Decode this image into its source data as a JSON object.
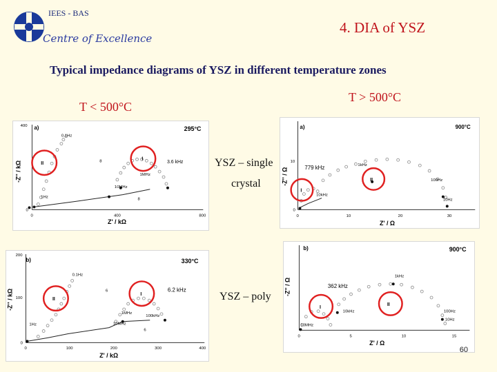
{
  "header": {
    "org": "IEES - BAS",
    "centre": "Centre of Excellence",
    "title": "4.  DIA of YSZ",
    "subtitle": "Typical impedance diagrams of YSZ in different  temperature zones"
  },
  "zones": {
    "low": "T < 500°C",
    "high": "T  > 500°C"
  },
  "labels": {
    "single_line1": "YSZ – single",
    "single_line2": "crystal",
    "poly": "YSZ – poly"
  },
  "page_number": "60",
  "colors": {
    "title_red": "#c0141c",
    "circle_red": "#e02020",
    "navy": "#1a1a60"
  },
  "chart_data": [
    {
      "type": "scatter",
      "panel": "a)",
      "temperature": "295°C",
      "xlabel": "Z' / kΩ",
      "ylabel": "-Z'' / kΩ",
      "xticks": [
        "0",
        "400",
        "800"
      ],
      "yticks": [
        "0",
        "400"
      ],
      "annotations": [
        "0.1Hz",
        "3.6 kHz",
        "1MHz",
        "10MHz",
        "8",
        "8",
        "1Hz",
        "II",
        "I"
      ]
    },
    {
      "type": "scatter",
      "panel": "b)",
      "temperature": "330°C",
      "xlabel": "Z' / kΩ",
      "ylabel": "-Z'' / kΩ",
      "xticks": [
        "0",
        "100",
        "200",
        "300",
        "400"
      ],
      "yticks": [
        "0",
        "100",
        "200"
      ],
      "annotations": [
        "0.1Hz",
        "6",
        "6.2 kHz",
        "1MHz",
        "10MHz",
        "100kHz",
        "1Hz",
        "6",
        "II",
        "I"
      ]
    },
    {
      "type": "scatter",
      "panel": "a)",
      "temperature": "900°C",
      "xlabel": "Z' / Ω",
      "ylabel": "-Z'' / Ω",
      "xticks": [
        "0",
        "10",
        "20",
        "30"
      ],
      "yticks": [
        "0",
        "10"
      ],
      "annotations": [
        "779 kHz",
        "1kHz",
        "100Hz",
        "10kHz",
        "10Hz",
        "II",
        "I"
      ]
    },
    {
      "type": "scatter",
      "panel": "b)",
      "temperature": "900°C",
      "xlabel": "Z' / Ω",
      "ylabel": "-Z'' / Ω",
      "xticks": [
        "0",
        "5",
        "10",
        "15"
      ],
      "annotations": [
        "362 kHz",
        "1kHz",
        "10kHz",
        "100Hz",
        "10Hz",
        "10MHz",
        "II",
        "I"
      ]
    }
  ]
}
